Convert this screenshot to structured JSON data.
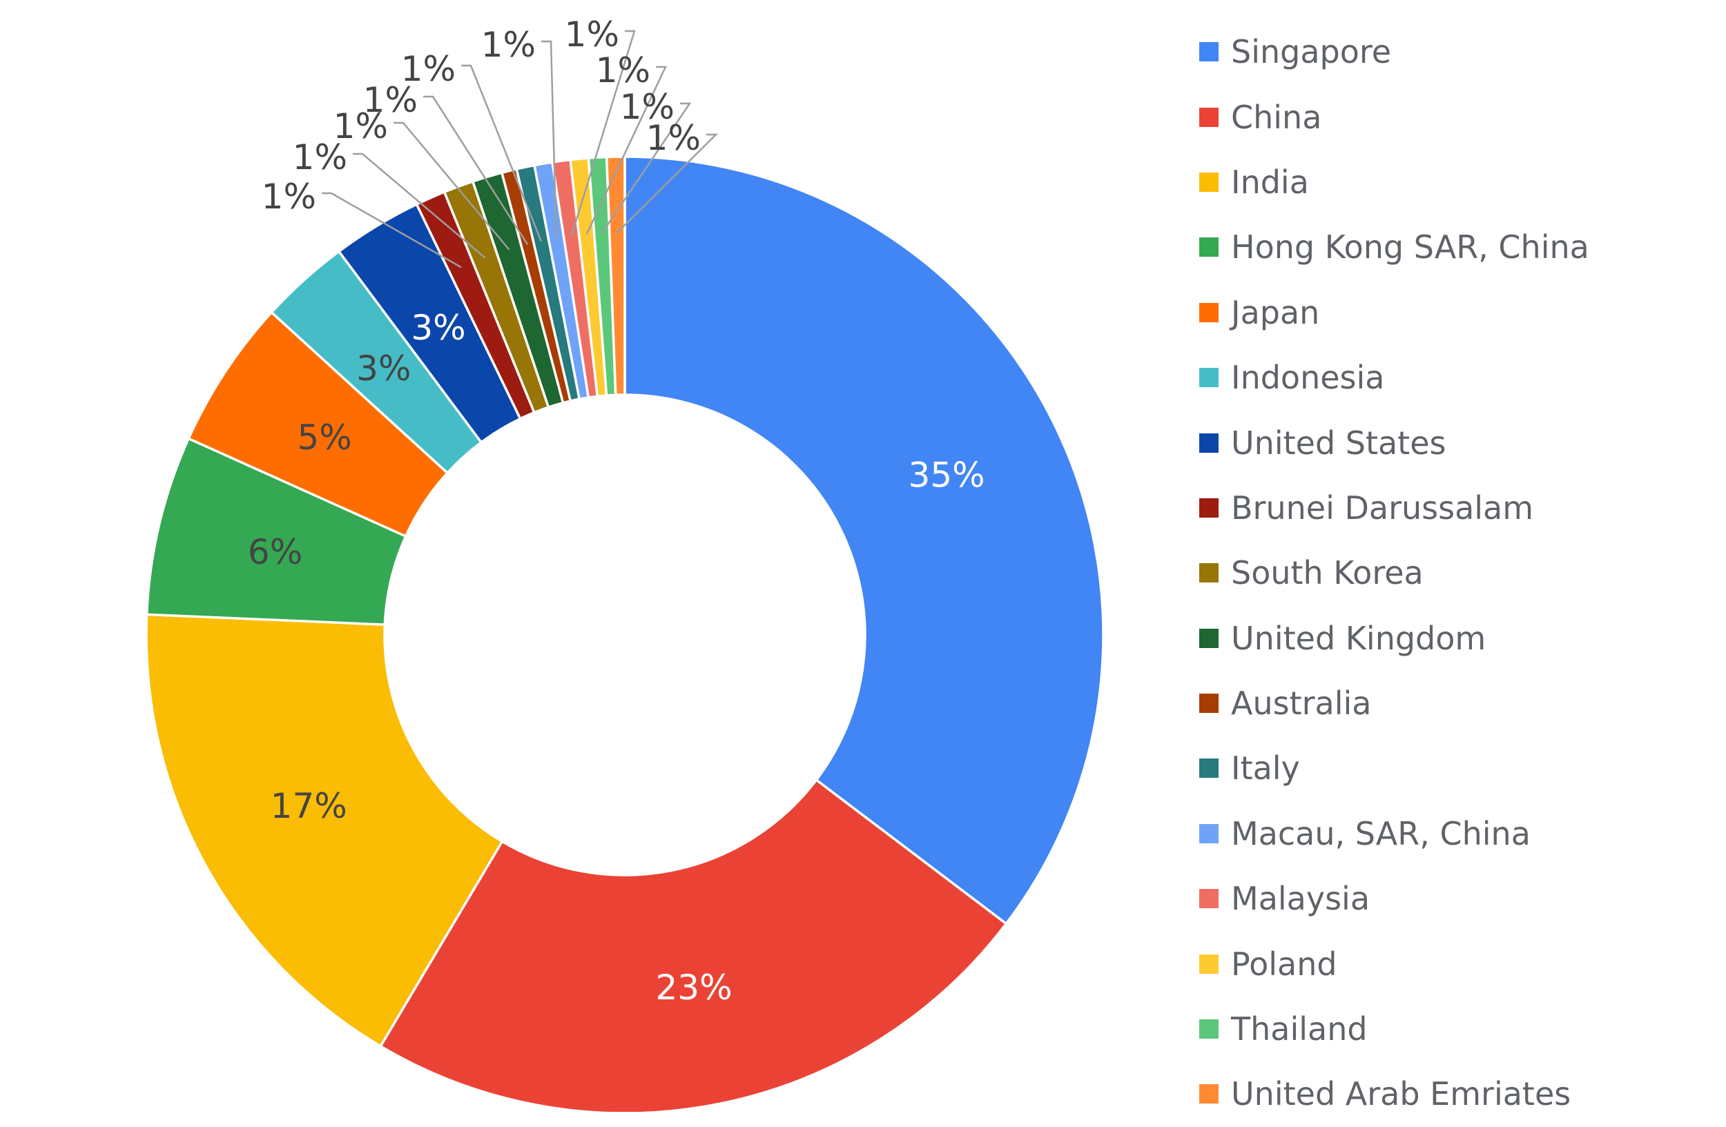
{
  "chart_data": {
    "type": "pie",
    "donut": true,
    "legend_position": "right",
    "slices": [
      {
        "label": "Singapore",
        "value": 35,
        "display": "35%",
        "color": "#4285f4",
        "label_color": "#ffffff"
      },
      {
        "label": "China",
        "value": 23,
        "display": "23%",
        "color": "#ea4335",
        "label_color": "#ffffff"
      },
      {
        "label": "India",
        "value": 17,
        "display": "17%",
        "color": "#fbbc04",
        "label_color": "#444444"
      },
      {
        "label": "Hong Kong SAR, China",
        "value": 6,
        "display": "6%",
        "color": "#34a853",
        "label_color": "#444444"
      },
      {
        "label": "Japan",
        "value": 5,
        "display": "5%",
        "color": "#ff6d01",
        "label_color": "#444444"
      },
      {
        "label": "Indonesia",
        "value": 3,
        "display": "3%",
        "color": "#46bdc6",
        "label_color": "#444444"
      },
      {
        "label": "United States",
        "value": 3,
        "display": "3%",
        "color": "#0b46ab",
        "label_color": "#ffffff"
      },
      {
        "label": "Brunei Darussalam",
        "value": 1,
        "display": "1%",
        "color": "#9e1b12",
        "label_color": "#444444"
      },
      {
        "label": "South Korea",
        "value": 1,
        "display": "1%",
        "color": "#977507",
        "label_color": "#444444"
      },
      {
        "label": "United Kingdom",
        "value": 1,
        "display": "1%",
        "color": "#1e6632",
        "label_color": "#444444"
      },
      {
        "label": "Australia",
        "value": 0.5,
        "display": "1%",
        "color": "#a83d04",
        "label_color": "#444444"
      },
      {
        "label": "Italy",
        "value": 0.6,
        "display": "1%",
        "color": "#277a7e",
        "label_color": "#444444"
      },
      {
        "label": "Macau, SAR, China",
        "value": 0.6,
        "display": "1%",
        "color": "#6ea3f8",
        "label_color": "#444444"
      },
      {
        "label": "Malaysia",
        "value": 0.6,
        "display": "1%",
        "color": "#ef6e64",
        "label_color": "#444444"
      },
      {
        "label": "Poland",
        "value": 0.6,
        "display": "1%",
        "color": "#fdca32",
        "label_color": "#444444"
      },
      {
        "label": "Thailand",
        "value": 0.6,
        "display": "1%",
        "color": "#5bc77a",
        "label_color": "#444444"
      },
      {
        "label": "United Arab Emriates",
        "value": 0.6,
        "display": "1%",
        "color": "#ff8a33",
        "label_color": "#444444"
      }
    ]
  }
}
